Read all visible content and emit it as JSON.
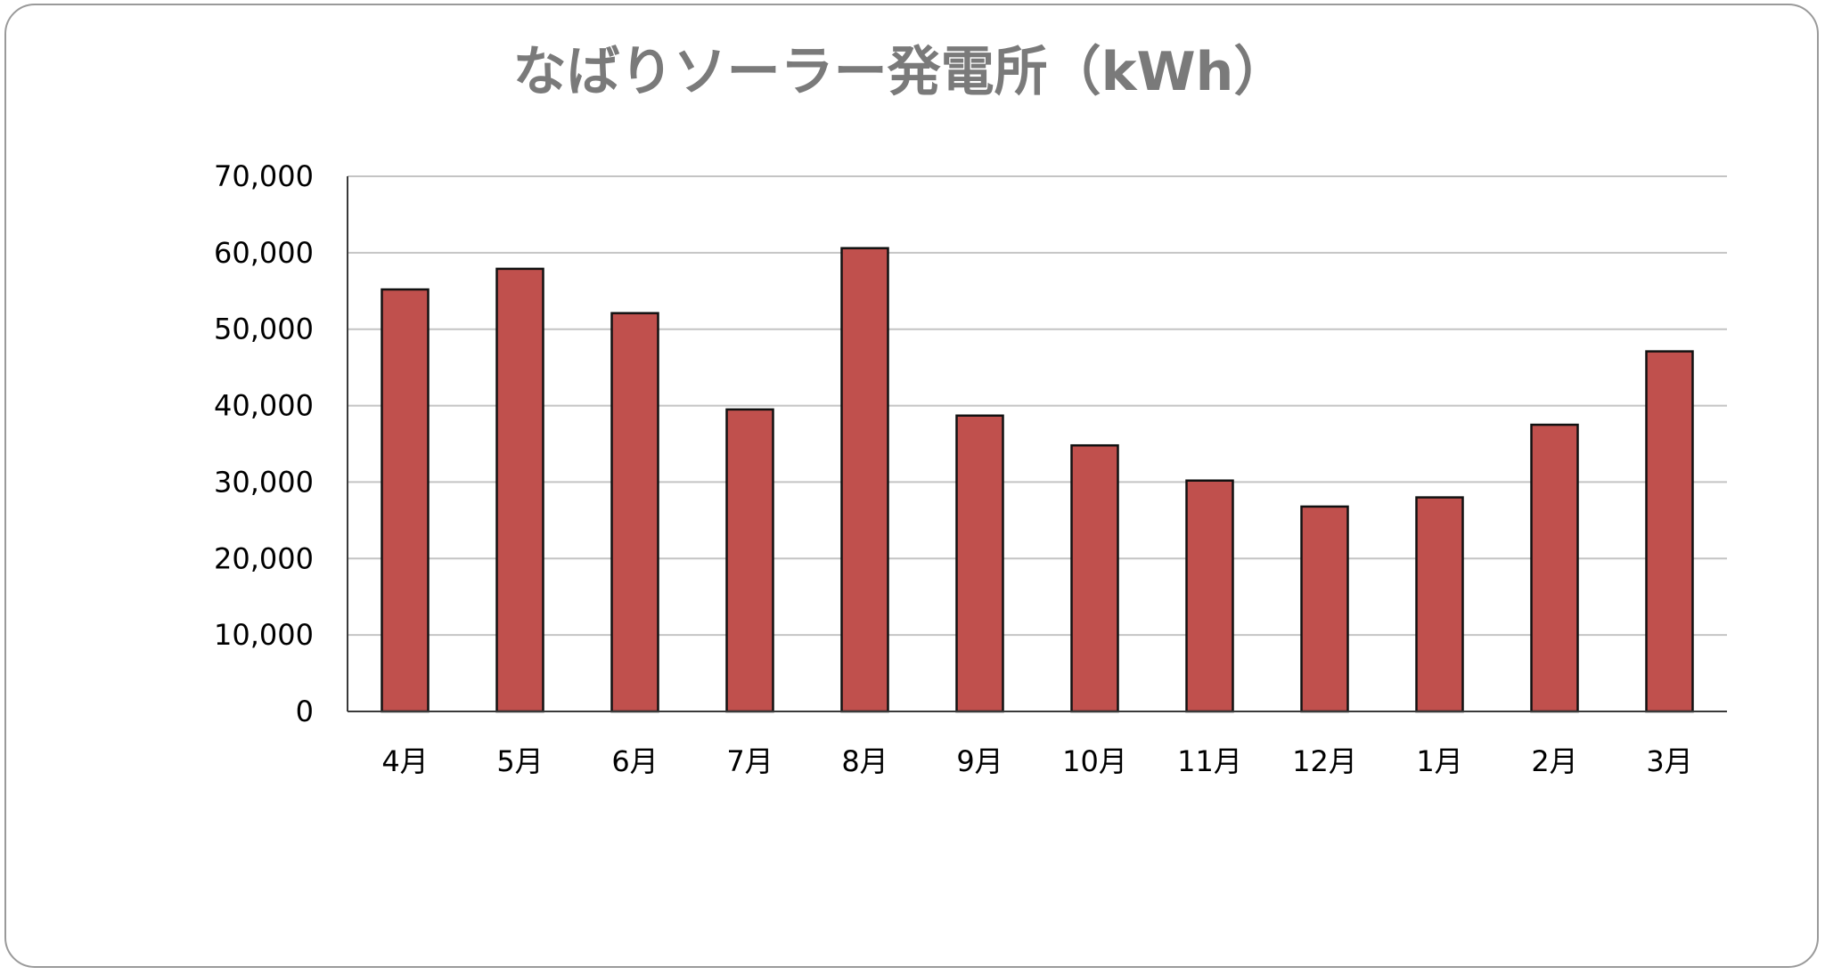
{
  "chart_data": {
    "type": "bar",
    "title": "なばりソーラー発電所（kWh）",
    "xlabel": "",
    "ylabel": "",
    "categories": [
      "4月",
      "5月",
      "6月",
      "7月",
      "8月",
      "9月",
      "10月",
      "11月",
      "12月",
      "1月",
      "2月",
      "3月"
    ],
    "values": [
      55200,
      57900,
      52100,
      39500,
      60600,
      38700,
      34800,
      30200,
      26800,
      28000,
      37500,
      47100
    ],
    "ylim": [
      0,
      70000
    ],
    "yticks": [
      0,
      10000,
      20000,
      30000,
      40000,
      50000,
      60000,
      70000
    ],
    "ytick_labels": [
      "0",
      "10,000",
      "20,000",
      "30,000",
      "40,000",
      "50,000",
      "60,000",
      "70,000"
    ],
    "grid": true,
    "legend": "none",
    "colors": {
      "bar_fill": "#c0504d",
      "bar_edge": "#111111",
      "title": "#7a7a7a"
    }
  }
}
